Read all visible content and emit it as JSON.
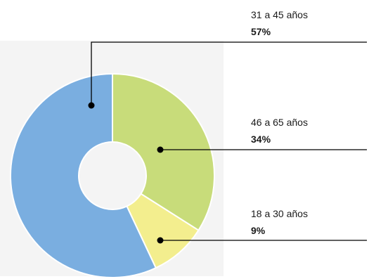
{
  "chart_data": {
    "type": "pie",
    "variant": "donut",
    "slices": [
      {
        "label": "31 a 45 años",
        "pct_label": "57%",
        "value": 57,
        "color": "#7aaee0"
      },
      {
        "label": "46 a 65 años",
        "pct_label": "34%",
        "value": 34,
        "color": "#c8dc7a"
      },
      {
        "label": "18 a 30 años",
        "pct_label": "9%",
        "value": 9,
        "color": "#f3ee8e"
      }
    ],
    "legend": "callouts-right"
  }
}
